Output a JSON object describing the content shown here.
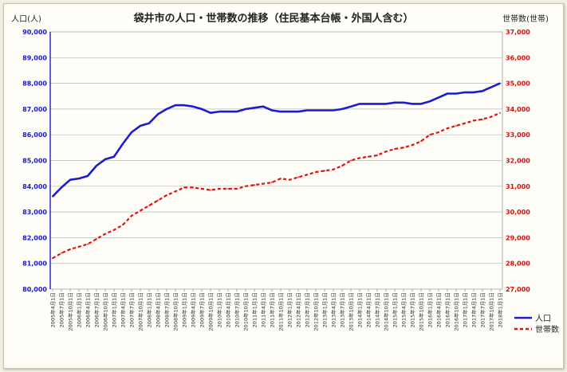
{
  "chart_data": {
    "type": "line",
    "title": "袋井市の人口・世帯数の推移（住民基本台帳・外国人含む）",
    "ylabel_left": "人口(人)",
    "ylabel_right": "世帯数(世帯)",
    "grid": true,
    "legend_position": "right",
    "colors": {
      "population": "#1c1ccc",
      "households": "#e01010"
    },
    "yaxis_left": {
      "range": [
        80000,
        90000
      ],
      "ticks": [
        "80,000",
        "81,000",
        "82,000",
        "83,000",
        "84,000",
        "85,000",
        "86,000",
        "87,000",
        "88,000",
        "89,000",
        "90,000"
      ]
    },
    "yaxis_right": {
      "range": [
        27000,
        37000
      ],
      "ticks": [
        "27,000",
        "28,000",
        "29,000",
        "30,000",
        "31,000",
        "32,000",
        "33,000",
        "34,000",
        "35,000",
        "36,000",
        "37,000"
      ]
    },
    "x_tick_labels": [
      "2005年4月1日",
      "2005年7月1日",
      "2005年10月1日",
      "2006年1月1日",
      "2006年4月1日",
      "2006年7月1日",
      "2006年10月1日",
      "2007年1月1日",
      "2007年4月1日",
      "2007年7月1日",
      "2007年10月1日",
      "2008年1月1日",
      "2008年4月1日",
      "2008年7月1日",
      "2008年10月1日",
      "2009年1月1日",
      "2009年4月1日",
      "2009年7月1日",
      "2009年10月1日",
      "2010年1月1日",
      "2010年4月1日",
      "2010年7月1日",
      "2010年10月1日",
      "2011年1月1日",
      "2011年4月1日",
      "2011年7月1日",
      "2011年10月1日",
      "2012年1月1日",
      "2012年4月1日",
      "2012年7月1日",
      "2012年10月1日",
      "2013年1月1日",
      "2013年4月1日",
      "2013年7月1日",
      "2013年10月1日",
      "2014年1月1日",
      "2014年4月1日",
      "2014年7月1日",
      "2014年10月1日",
      "2015年1月1日",
      "2015年4月1日",
      "2015年7月1日",
      "2015年10月1日",
      "2016年1月1日",
      "2016年4月1日",
      "2016年7月1日",
      "2016年10月1日",
      "2017年1月1日",
      "2017年4月1日",
      "2017年7月1日",
      "2017年10月1日",
      "2018年1月1日"
    ],
    "series": [
      {
        "name": "人口",
        "axis": "left",
        "style": "solid",
        "values": [
          83600,
          83950,
          84250,
          84300,
          84400,
          84800,
          85050,
          85150,
          85650,
          86100,
          86350,
          86450,
          86800,
          87000,
          87150,
          87150,
          87100,
          87000,
          86850,
          86900,
          86900,
          86900,
          87000,
          87050,
          87100,
          86950,
          86900,
          86900,
          86900,
          86950,
          86950,
          86950,
          86950,
          87000,
          87100,
          87200,
          87200,
          87200,
          87200,
          87250,
          87250,
          87200,
          87200,
          87300,
          87450,
          87600,
          87600,
          87650,
          87650,
          87700,
          87850,
          88000
        ]
      },
      {
        "name": "世帯数",
        "axis": "right",
        "style": "dashed",
        "values": [
          28200,
          28400,
          28550,
          28650,
          28750,
          28950,
          29150,
          29300,
          29500,
          29850,
          30050,
          30250,
          30450,
          30650,
          30800,
          30950,
          30950,
          30900,
          30850,
          30900,
          30900,
          30900,
          31000,
          31050,
          31100,
          31150,
          31300,
          31250,
          31350,
          31450,
          31550,
          31600,
          31650,
          31800,
          32000,
          32100,
          32150,
          32200,
          32350,
          32450,
          32500,
          32600,
          32750,
          33000,
          33100,
          33250,
          33350,
          33450,
          33550,
          33600,
          33700,
          33850
        ]
      }
    ]
  }
}
